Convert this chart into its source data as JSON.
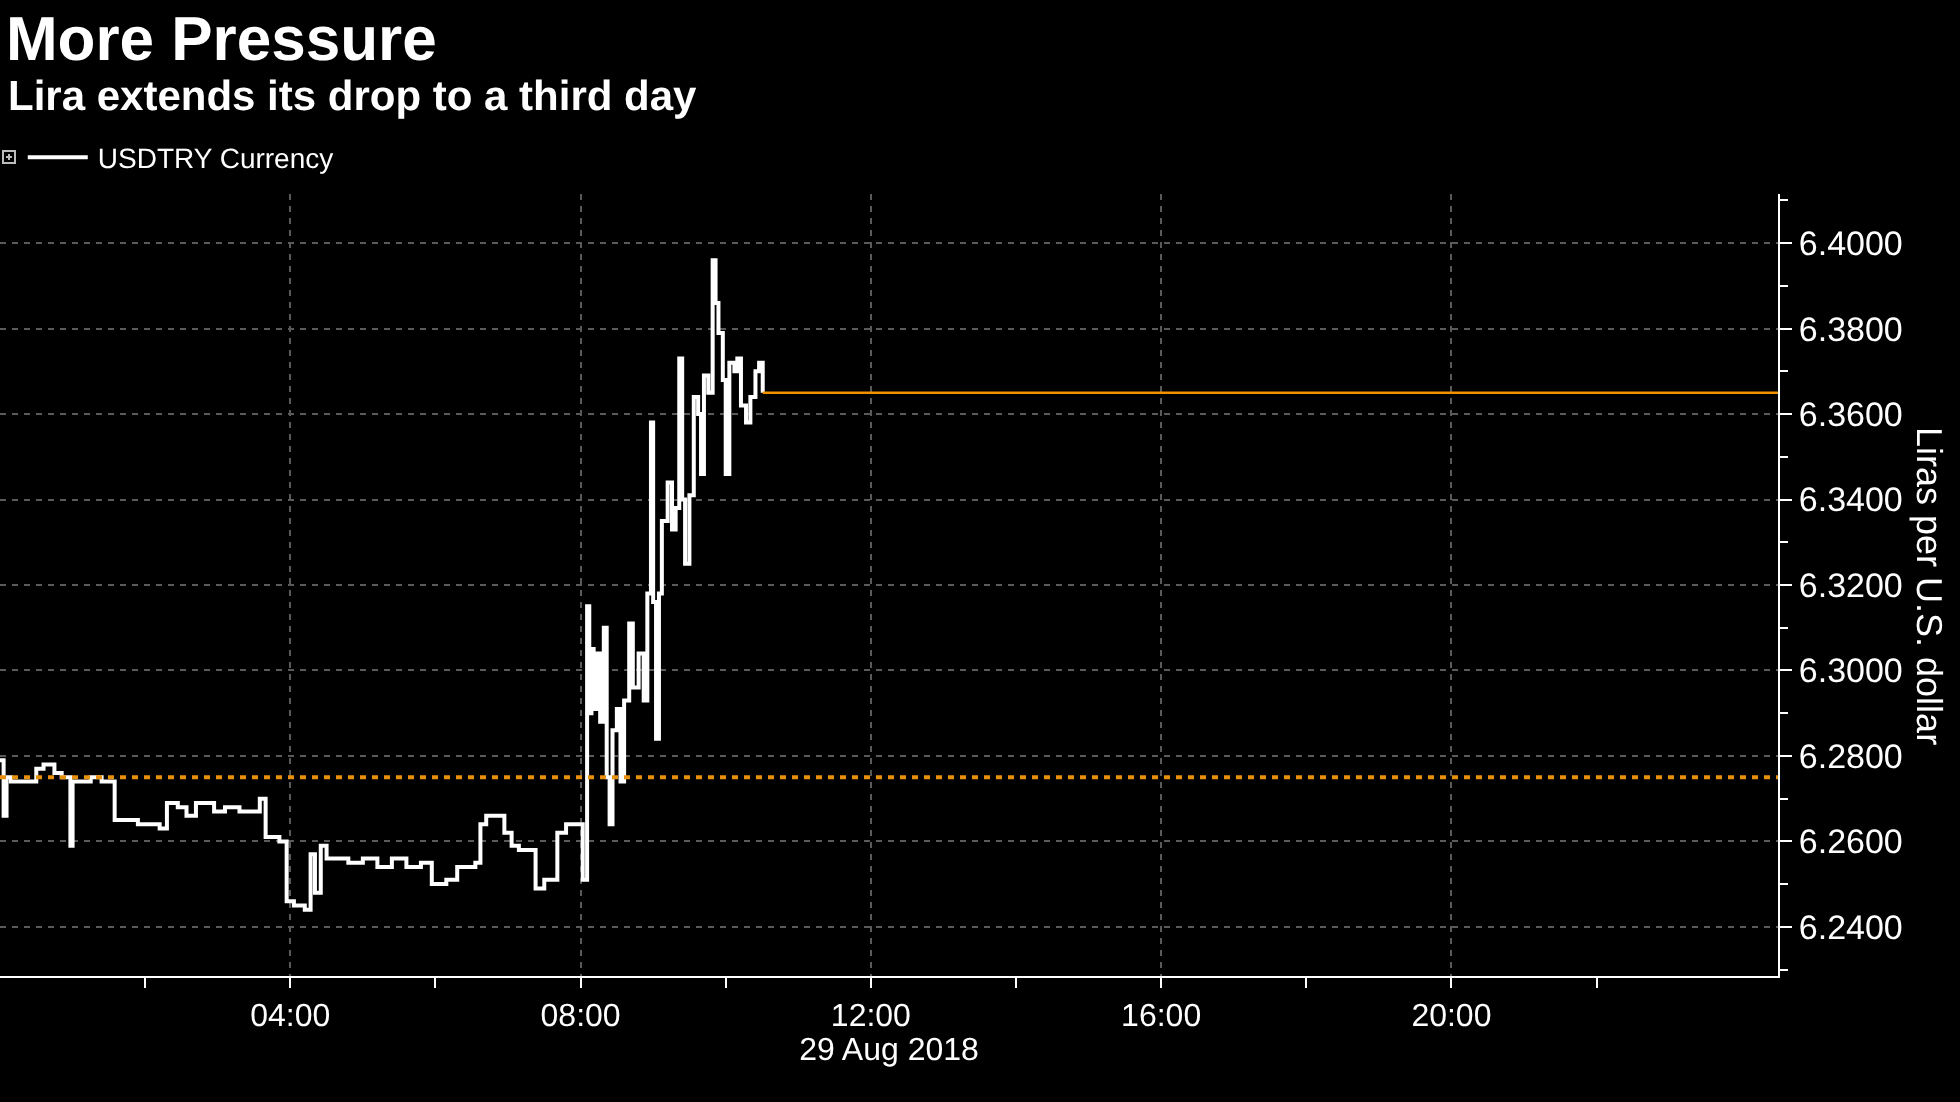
{
  "chart_data": {
    "type": "step",
    "title": "More Pressure",
    "subtitle": "Lira extends its drop to a third day",
    "xlabel": "29 Aug 2018",
    "ylabel": "Liras per U.S. dollar",
    "x": [
      0,
      0.05,
      0.09,
      0.15,
      0.5,
      0.6,
      0.75,
      0.85,
      0.97,
      1,
      1.25,
      1.4,
      1.58,
      1.9,
      2.2,
      2.3,
      2.45,
      2.57,
      2.7,
      2.95,
      3.1,
      3.3,
      3.58,
      3.66,
      3.85,
      3.95,
      4.05,
      4.2,
      4.28,
      4.34,
      4.42,
      4.5,
      4.8,
      5,
      5.2,
      5.4,
      5.6,
      5.8,
      5.95,
      6.15,
      6.3,
      6.55,
      6.62,
      6.7,
      6.95,
      7.05,
      7.15,
      7.38,
      7.5,
      7.68,
      7.8,
      8.03,
      8.09,
      8.12,
      8.15,
      8.18,
      8.22,
      8.27,
      8.32,
      8.36,
      8.4,
      8.44,
      8.5,
      8.55,
      8.6,
      8.67,
      8.72,
      8.8,
      8.87,
      8.92,
      8.97,
      9,
      9.04,
      9.08,
      9.12,
      9.2,
      9.26,
      9.31,
      9.36,
      9.4,
      9.44,
      9.5,
      9.56,
      9.62,
      9.66,
      9.7,
      9.76,
      9.82,
      9.86,
      9.9,
      9.96,
      10,
      10.05,
      10.12,
      10.16,
      10.21,
      10.28,
      10.34,
      10.41,
      10.46,
      10.51
    ],
    "series": [
      {
        "name": "USDTRY Currency",
        "color": "#ffffff",
        "values": [
          6.279,
          6.266,
          6.275,
          6.274,
          6.277,
          6.278,
          6.276,
          6.275,
          6.259,
          6.274,
          6.275,
          6.274,
          6.265,
          6.264,
          6.263,
          6.269,
          6.268,
          6.266,
          6.269,
          6.267,
          6.268,
          6.267,
          6.27,
          6.261,
          6.26,
          6.246,
          6.245,
          6.244,
          6.257,
          6.248,
          6.259,
          6.256,
          6.255,
          6.256,
          6.254,
          6.256,
          6.254,
          6.255,
          6.25,
          6.251,
          6.254,
          6.255,
          6.264,
          6.266,
          6.262,
          6.259,
          6.258,
          6.249,
          6.251,
          6.262,
          6.264,
          6.251,
          6.315,
          6.29,
          6.305,
          6.291,
          6.304,
          6.288,
          6.31,
          6.275,
          6.264,
          6.286,
          6.291,
          6.274,
          6.293,
          6.311,
          6.296,
          6.304,
          6.293,
          6.318,
          6.358,
          6.316,
          6.284,
          6.318,
          6.335,
          6.344,
          6.333,
          6.338,
          6.373,
          6.34,
          6.325,
          6.341,
          6.364,
          6.36,
          6.346,
          6.369,
          6.365,
          6.396,
          6.386,
          6.379,
          6.368,
          6.346,
          6.372,
          6.37,
          6.373,
          6.362,
          6.358,
          6.364,
          6.37,
          6.372,
          6.365
        ]
      }
    ],
    "xlim": [
      0,
      24.5
    ],
    "xticks": [
      {
        "value": 2,
        "label": null
      },
      {
        "value": 4,
        "label": "04:00"
      },
      {
        "value": 6,
        "label": null
      },
      {
        "value": 8,
        "label": "08:00"
      },
      {
        "value": 10,
        "label": null
      },
      {
        "value": 12,
        "label": "12:00"
      },
      {
        "value": 14,
        "label": null
      },
      {
        "value": 16,
        "label": "16:00"
      },
      {
        "value": 18,
        "label": null
      },
      {
        "value": 20,
        "label": "20:00"
      },
      {
        "value": 22,
        "label": null
      }
    ],
    "ylim": [
      6.2285,
      6.4115
    ],
    "yticks": [
      {
        "value": 6.23,
        "label": null
      },
      {
        "value": 6.24,
        "label": "6.2400"
      },
      {
        "value": 6.25,
        "label": null
      },
      {
        "value": 6.26,
        "label": "6.2600"
      },
      {
        "value": 6.27,
        "label": null
      },
      {
        "value": 6.28,
        "label": "6.2800"
      },
      {
        "value": 6.29,
        "label": null
      },
      {
        "value": 6.3,
        "label": "6.3000"
      },
      {
        "value": 6.31,
        "label": null
      },
      {
        "value": 6.32,
        "label": "6.3200"
      },
      {
        "value": 6.33,
        "label": null
      },
      {
        "value": 6.34,
        "label": "6.3400"
      },
      {
        "value": 6.35,
        "label": null
      },
      {
        "value": 6.36,
        "label": "6.3600"
      },
      {
        "value": 6.37,
        "label": null
      },
      {
        "value": 6.38,
        "label": "6.3800"
      },
      {
        "value": 6.39,
        "label": null
      },
      {
        "value": 6.4,
        "label": "6.4000"
      },
      {
        "value": 6.41,
        "label": null
      }
    ],
    "grid": true,
    "legend": "top left",
    "ref_lines": [
      {
        "axis": "y",
        "value": 6.275,
        "color": "#e8900c",
        "line_style": "dotted"
      },
      {
        "axis": "y",
        "value": 6.365,
        "color": "#f39200",
        "line_style": "solid"
      }
    ]
  }
}
